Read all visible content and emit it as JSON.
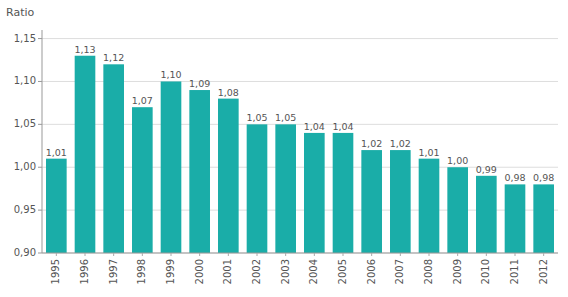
{
  "chart_data": {
    "type": "bar",
    "y_label": "Ratio",
    "categories": [
      "1995",
      "1996",
      "1997",
      "1998",
      "1999",
      "2000",
      "2001",
      "2002",
      "2003",
      "2004",
      "2005",
      "2006",
      "2007",
      "2008",
      "2009",
      "2010",
      "2011",
      "2012"
    ],
    "values": [
      1.01,
      1.13,
      1.12,
      1.07,
      1.1,
      1.09,
      1.08,
      1.05,
      1.05,
      1.04,
      1.04,
      1.02,
      1.02,
      1.01,
      1.0,
      0.99,
      0.98,
      0.98
    ],
    "value_labels": [
      "1,01",
      "1,13",
      "1,12",
      "1,07",
      "1,10",
      "1,09",
      "1,08",
      "1,05",
      "1,05",
      "1,04",
      "1,04",
      "1,02",
      "1,02",
      "1,01",
      "1,00",
      "0,99",
      "0,98",
      "0,98"
    ],
    "data_labels": true,
    "color": "#1AADA8",
    "ylim": [
      0.9,
      1.16
    ],
    "yticks": [
      {
        "value": 0.9,
        "label": "0,90"
      },
      {
        "value": 0.95,
        "label": "0,95"
      },
      {
        "value": 1.0,
        "label": "1,00"
      },
      {
        "value": 1.05,
        "label": "1,05"
      },
      {
        "value": 1.1,
        "label": "1,10"
      },
      {
        "value": 1.15,
        "label": "1,15"
      }
    ],
    "grid": true
  }
}
